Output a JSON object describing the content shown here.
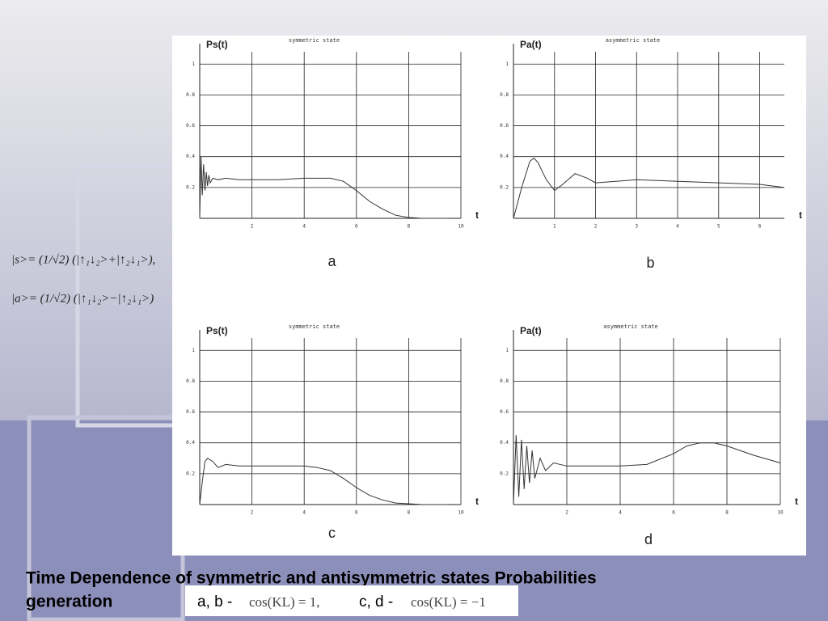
{
  "chart_data": [
    {
      "type": "line",
      "title": "symmetric state",
      "ylabel": "Ps(t)",
      "xlabel": "t",
      "label": "a",
      "x": [
        0,
        0.05,
        0.1,
        0.15,
        0.2,
        0.25,
        0.3,
        0.35,
        0.4,
        0.5,
        0.7,
        1,
        1.5,
        2,
        3,
        4,
        5,
        5.5,
        6,
        6.5,
        7,
        7.5,
        8,
        8.5,
        9,
        9.5
      ],
      "values": [
        0,
        0.4,
        0.15,
        0.35,
        0.18,
        0.3,
        0.21,
        0.28,
        0.23,
        0.26,
        0.25,
        0.26,
        0.25,
        0.25,
        0.25,
        0.26,
        0.26,
        0.24,
        0.18,
        0.11,
        0.06,
        0.02,
        0.005,
        0,
        0,
        0
      ],
      "color": "#333333",
      "xlim": [
        0,
        10
      ],
      "ylim": [
        0,
        1.08
      ],
      "xticks": [
        2,
        4,
        6,
        8,
        10
      ],
      "yticks": [
        0.2,
        0.4,
        0.6,
        0.8,
        1
      ],
      "grid": true
    },
    {
      "type": "line",
      "title": "asymmetric state",
      "ylabel": "Pa(t)",
      "xlabel": "t",
      "label": "b",
      "x": [
        0,
        0.2,
        0.4,
        0.5,
        0.6,
        0.8,
        1,
        1.2,
        1.5,
        1.8,
        2,
        2.5,
        3,
        4,
        5,
        6,
        6.6
      ],
      "values": [
        0,
        0.2,
        0.37,
        0.39,
        0.36,
        0.25,
        0.18,
        0.22,
        0.29,
        0.26,
        0.23,
        0.24,
        0.25,
        0.24,
        0.23,
        0.22,
        0.2
      ],
      "color": "#333333",
      "xlim": [
        0,
        6.6
      ],
      "ylim": [
        0,
        1.08
      ],
      "xticks": [
        1,
        2,
        3,
        4,
        5,
        6
      ],
      "yticks": [
        0.2,
        0.4,
        0.6,
        0.8,
        1
      ],
      "grid": true
    },
    {
      "type": "line",
      "title": "symmetric state",
      "ylabel": "Ps(t)",
      "xlabel": "t",
      "label": "c",
      "x": [
        0,
        0.1,
        0.2,
        0.3,
        0.5,
        0.7,
        1,
        1.5,
        2,
        3,
        4,
        4.5,
        5,
        5.5,
        6,
        6.5,
        7,
        7.5,
        8,
        8.5,
        9,
        9.5
      ],
      "values": [
        0,
        0.15,
        0.28,
        0.3,
        0.28,
        0.24,
        0.26,
        0.25,
        0.25,
        0.25,
        0.25,
        0.24,
        0.22,
        0.17,
        0.11,
        0.06,
        0.03,
        0.01,
        0.005,
        0,
        0,
        0
      ],
      "color": "#333333",
      "xlim": [
        0,
        10
      ],
      "ylim": [
        0,
        1.08
      ],
      "xticks": [
        2,
        4,
        6,
        8,
        10
      ],
      "yticks": [
        0.2,
        0.4,
        0.6,
        0.8,
        1
      ],
      "grid": true
    },
    {
      "type": "line",
      "title": "asymmetric state",
      "ylabel": "Pa(t)",
      "xlabel": "t",
      "label": "d",
      "x": [
        0,
        0.1,
        0.2,
        0.3,
        0.4,
        0.5,
        0.6,
        0.7,
        0.8,
        1,
        1.2,
        1.5,
        2,
        3,
        4,
        5,
        6,
        6.5,
        7,
        7.5,
        8,
        9,
        10
      ],
      "values": [
        0,
        0.45,
        0.05,
        0.42,
        0.1,
        0.38,
        0.14,
        0.35,
        0.17,
        0.3,
        0.22,
        0.27,
        0.25,
        0.25,
        0.25,
        0.26,
        0.33,
        0.38,
        0.4,
        0.4,
        0.38,
        0.32,
        0.27
      ],
      "color": "#333333",
      "xlim": [
        0,
        10
      ],
      "ylim": [
        0,
        1.08
      ],
      "xticks": [
        2,
        4,
        6,
        8,
        10
      ],
      "yticks": [
        0.2,
        0.4,
        0.6,
        0.8,
        1
      ],
      "grid": true
    }
  ],
  "slide": {
    "formulas": [
      "|s>= (1/√2) (|↑₁↓₂>+|↑₂↓₁>),",
      "|a>= (1/√2) (|↑₁↓₂>−|↑₂↓₁>)"
    ],
    "caption": [
      "Time Dependence of  symmetric and antisymmetric states  Probabilities",
      "generation"
    ],
    "legend": [
      "a, b -",
      "cos(KL) = 1,",
      "c, d -",
      "cos(KL) = −1"
    ]
  }
}
